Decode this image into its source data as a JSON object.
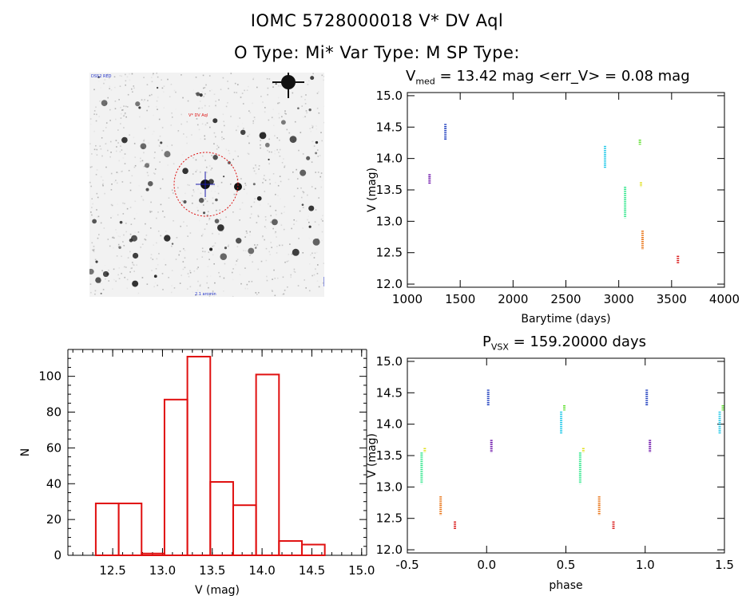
{
  "header": {
    "title_line1": "IOMC 5728000018    V* DV Aql",
    "title_line2": "O Type: Mi*  Var Type: M  SP Type:"
  },
  "image_panel": {
    "label_top_left": "DSS2 RED",
    "label_target": "V* DV Aql",
    "label_bottom_center": "2.1 arcmin"
  },
  "lightcurve": {
    "title_prefix": "V",
    "title_sub": "med",
    "title_rest": " = 13.42 mag <err_V> = 0.08 mag",
    "xlabel": "Barytime (days)",
    "ylabel": "V (mag)"
  },
  "phaseplot": {
    "title_prefix": "P",
    "title_sub": "VSX",
    "title_rest": " = 159.20000 days",
    "xlabel": "phase",
    "ylabel": "V (mag)"
  },
  "histogram": {
    "xlabel": "V (mag)",
    "ylabel": "N"
  },
  "chart_data": [
    {
      "type": "scatter",
      "name": "lightcurve",
      "x_range": [
        1000,
        4000
      ],
      "y_range": [
        15.05,
        11.95
      ],
      "y_inverted": true,
      "x_ticks": [
        1000,
        1500,
        2000,
        2500,
        3000,
        3500,
        4000
      ],
      "y_ticks": [
        12.0,
        12.5,
        13.0,
        13.5,
        14.0,
        14.5,
        15.0
      ],
      "groups": [
        {
          "x": 1210,
          "ymin": 13.6,
          "ymax": 13.75,
          "color": "#6a0da8"
        },
        {
          "x": 1360,
          "ymin": 14.3,
          "ymax": 14.55,
          "color": "#1f3fbf"
        },
        {
          "x": 2870,
          "ymin": 13.85,
          "ymax": 14.2,
          "color": "#1ec8e8"
        },
        {
          "x": 3060,
          "ymin": 13.05,
          "ymax": 13.55,
          "color": "#2ee68a"
        },
        {
          "x": 3200,
          "ymin": 14.22,
          "ymax": 14.3,
          "color": "#55dd22"
        },
        {
          "x": 3210,
          "ymin": 13.55,
          "ymax": 13.62,
          "color": "#e0e020"
        },
        {
          "x": 3225,
          "ymin": 12.55,
          "ymax": 12.85,
          "color": "#e87010"
        },
        {
          "x": 3560,
          "ymin": 12.33,
          "ymax": 12.45,
          "color": "#d81010"
        }
      ]
    },
    {
      "type": "scatter",
      "name": "phased",
      "x_range": [
        -0.5,
        1.5
      ],
      "y_range": [
        15.05,
        11.95
      ],
      "y_inverted": true,
      "x_ticks": [
        -0.5,
        0.0,
        0.5,
        1.0,
        1.5
      ],
      "y_ticks": [
        12.0,
        12.5,
        13.0,
        13.5,
        14.0,
        14.5,
        15.0
      ],
      "groups": [
        {
          "x": 0.03,
          "ymin": 13.55,
          "ymax": 13.75,
          "color": "#6a0da8"
        },
        {
          "x": 0.01,
          "ymin": 14.3,
          "ymax": 14.55,
          "color": "#1f3fbf"
        },
        {
          "x": 0.47,
          "ymin": 13.85,
          "ymax": 14.2,
          "color": "#1ec8e8"
        },
        {
          "x": 0.59,
          "ymin": 13.05,
          "ymax": 13.55,
          "color": "#2ee68a"
        },
        {
          "x": 0.49,
          "ymin": 14.22,
          "ymax": 14.3,
          "color": "#55dd22"
        },
        {
          "x": 0.61,
          "ymin": 13.55,
          "ymax": 13.62,
          "color": "#e0e020"
        },
        {
          "x": 0.71,
          "ymin": 12.55,
          "ymax": 12.85,
          "color": "#e87010"
        },
        {
          "x": 0.8,
          "ymin": 12.33,
          "ymax": 12.45,
          "color": "#d81010"
        }
      ]
    },
    {
      "type": "bar",
      "name": "histogram",
      "x_range": [
        12.05,
        15.05
      ],
      "y_range": [
        0,
        115
      ],
      "x_ticks": [
        12.5,
        13.0,
        13.5,
        14.0,
        14.5,
        15.0
      ],
      "y_ticks": [
        0,
        20,
        40,
        60,
        80,
        100
      ],
      "bin_edges": [
        12.33,
        12.56,
        12.79,
        13.02,
        13.25,
        13.48,
        13.71,
        13.94,
        14.17,
        14.4,
        14.63
      ],
      "values": [
        29,
        29,
        1,
        87,
        111,
        41,
        28,
        101,
        8,
        6
      ],
      "bar_color": "#e01010"
    }
  ]
}
